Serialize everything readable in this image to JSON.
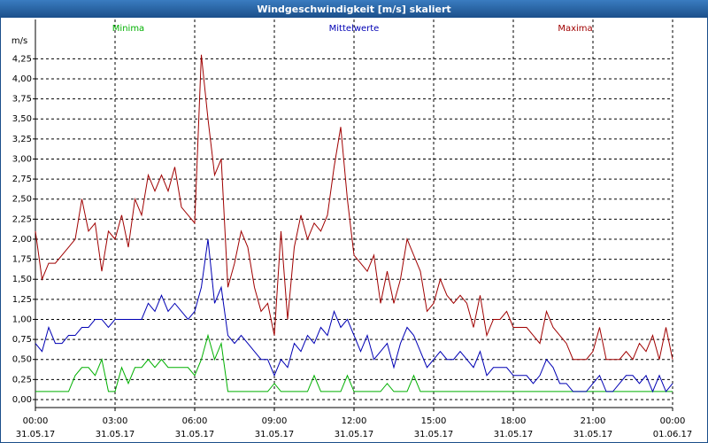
{
  "chart_data": {
    "type": "line",
    "title": "Windgeschwindigkeit [m/s] skaliert",
    "ylabel": "m/s",
    "x": [
      0,
      15,
      30,
      45,
      60,
      75,
      90,
      105,
      120,
      135,
      150,
      165,
      180,
      195,
      210,
      225,
      240,
      255,
      270,
      285,
      300,
      315,
      330,
      345,
      360,
      375,
      390,
      405,
      420,
      435,
      450,
      465,
      480,
      495,
      510,
      525,
      540,
      555,
      570,
      585,
      600,
      615,
      630,
      645,
      660,
      675,
      690,
      705,
      720,
      735,
      750,
      765,
      780,
      795,
      810,
      825,
      840,
      855,
      870,
      885,
      900,
      915,
      930,
      945,
      960,
      975,
      990,
      1005,
      1020,
      1035,
      1050,
      1065,
      1080,
      1095,
      1110,
      1125,
      1140,
      1155,
      1170,
      1185,
      1200,
      1215,
      1230,
      1245,
      1260,
      1275,
      1290,
      1305,
      1320,
      1335,
      1350,
      1365,
      1380,
      1395,
      1410,
      1425,
      1440
    ],
    "series": [
      {
        "name": "Minima",
        "color": "#00b000",
        "values": [
          0.1,
          0.1,
          0.1,
          0.1,
          0.1,
          0.1,
          0.3,
          0.4,
          0.4,
          0.3,
          0.5,
          0.1,
          0.1,
          0.4,
          0.2,
          0.4,
          0.4,
          0.5,
          0.4,
          0.5,
          0.4,
          0.4,
          0.4,
          0.4,
          0.3,
          0.5,
          0.8,
          0.5,
          0.7,
          0.1,
          0.1,
          0.1,
          0.1,
          0.1,
          0.1,
          0.1,
          0.2,
          0.1,
          0.1,
          0.1,
          0.1,
          0.1,
          0.3,
          0.1,
          0.1,
          0.1,
          0.1,
          0.3,
          0.1,
          0.1,
          0.1,
          0.1,
          0.1,
          0.2,
          0.1,
          0.1,
          0.1,
          0.3,
          0.1,
          0.1,
          0.1,
          0.1,
          0.1,
          0.1,
          0.1,
          0.1,
          0.1,
          0.1,
          0.1,
          0.1,
          0.1,
          0.1,
          0.1,
          0.1,
          0.1,
          0.1,
          0.1,
          0.1,
          0.1,
          0.1,
          0.1,
          0.1,
          0.1,
          0.1,
          0.1,
          0.1,
          0.1,
          0.1,
          0.1,
          0.1,
          0.1,
          0.1,
          0.1,
          0.1,
          0.1,
          0.1,
          0.1
        ]
      },
      {
        "name": "Mittelwerte",
        "color": "#0000b4",
        "values": [
          0.7,
          0.6,
          0.9,
          0.7,
          0.7,
          0.8,
          0.8,
          0.9,
          0.9,
          1.0,
          1.0,
          0.9,
          1.0,
          1.0,
          1.0,
          1.0,
          1.0,
          1.2,
          1.1,
          1.3,
          1.1,
          1.2,
          1.1,
          1.0,
          1.1,
          1.4,
          2.0,
          1.2,
          1.4,
          0.8,
          0.7,
          0.8,
          0.7,
          0.6,
          0.5,
          0.5,
          0.3,
          0.5,
          0.4,
          0.7,
          0.6,
          0.8,
          0.7,
          0.9,
          0.8,
          1.1,
          0.9,
          1.0,
          0.8,
          0.6,
          0.8,
          0.5,
          0.6,
          0.7,
          0.4,
          0.7,
          0.9,
          0.8,
          0.6,
          0.4,
          0.5,
          0.6,
          0.5,
          0.5,
          0.6,
          0.5,
          0.4,
          0.6,
          0.3,
          0.4,
          0.4,
          0.4,
          0.3,
          0.3,
          0.3,
          0.2,
          0.3,
          0.5,
          0.4,
          0.2,
          0.2,
          0.1,
          0.1,
          0.1,
          0.2,
          0.3,
          0.1,
          0.1,
          0.2,
          0.3,
          0.3,
          0.2,
          0.3,
          0.1,
          0.3,
          0.1,
          0.2
        ]
      },
      {
        "name": "Maxima",
        "color": "#a00000",
        "values": [
          2.1,
          1.5,
          1.7,
          1.7,
          1.8,
          1.9,
          2.0,
          2.5,
          2.1,
          2.2,
          1.6,
          2.1,
          2.0,
          2.3,
          1.9,
          2.5,
          2.3,
          2.8,
          2.6,
          2.8,
          2.6,
          2.9,
          2.4,
          2.3,
          2.2,
          4.3,
          3.5,
          2.8,
          3.0,
          1.4,
          1.7,
          2.1,
          1.9,
          1.4,
          1.1,
          1.2,
          0.8,
          2.1,
          1.0,
          1.9,
          2.3,
          2.0,
          2.2,
          2.1,
          2.3,
          2.9,
          3.4,
          2.5,
          1.8,
          1.7,
          1.6,
          1.8,
          1.2,
          1.6,
          1.2,
          1.5,
          2.0,
          1.8,
          1.6,
          1.1,
          1.2,
          1.5,
          1.3,
          1.2,
          1.3,
          1.2,
          0.9,
          1.3,
          0.8,
          1.0,
          1.0,
          1.1,
          0.9,
          0.9,
          0.9,
          0.8,
          0.7,
          1.1,
          0.9,
          0.8,
          0.7,
          0.5,
          0.5,
          0.5,
          0.6,
          0.9,
          0.5,
          0.5,
          0.5,
          0.6,
          0.5,
          0.7,
          0.6,
          0.8,
          0.5,
          0.9,
          0.5
        ]
      }
    ],
    "xlim": [
      0,
      1440
    ],
    "xticks": [
      {
        "value": 0,
        "label": "00:00"
      },
      {
        "value": 180,
        "label": "03:00"
      },
      {
        "value": 360,
        "label": "06:00"
      },
      {
        "value": 540,
        "label": "09:00"
      },
      {
        "value": 720,
        "label": "12:00"
      },
      {
        "value": 900,
        "label": "15:00"
      },
      {
        "value": 1080,
        "label": "18:00"
      },
      {
        "value": 1260,
        "label": "21:00"
      },
      {
        "value": 1440,
        "label": "00:00"
      }
    ],
    "xtick_dates": [
      "31.05.17",
      "31.05.17",
      "31.05.17",
      "31.05.17",
      "31.05.17",
      "31.05.17",
      "31.05.17",
      "31.05.17",
      "01.06.17"
    ],
    "ylim": [
      -0.1,
      4.74
    ],
    "yticks": [
      {
        "value": 0,
        "label": "0,00"
      },
      {
        "value": 0.25,
        "label": "0,25"
      },
      {
        "value": 0.5,
        "label": "0,50"
      },
      {
        "value": 0.75,
        "label": "0,75"
      },
      {
        "value": 1,
        "label": "1,00"
      },
      {
        "value": 1.25,
        "label": "1,25"
      },
      {
        "value": 1.5,
        "label": "1,50"
      },
      {
        "value": 1.75,
        "label": "1,75"
      },
      {
        "value": 2,
        "label": "2,00"
      },
      {
        "value": 2.25,
        "label": "2,25"
      },
      {
        "value": 2.5,
        "label": "2,50"
      },
      {
        "value": 2.75,
        "label": "2,75"
      },
      {
        "value": 3,
        "label": "3,00"
      },
      {
        "value": 3.25,
        "label": "3,25"
      },
      {
        "value": 3.5,
        "label": "3,50"
      },
      {
        "value": 3.75,
        "label": "3,75"
      },
      {
        "value": 4,
        "label": "4,00"
      },
      {
        "value": 4.25,
        "label": "4,25"
      }
    ],
    "grid": true
  }
}
